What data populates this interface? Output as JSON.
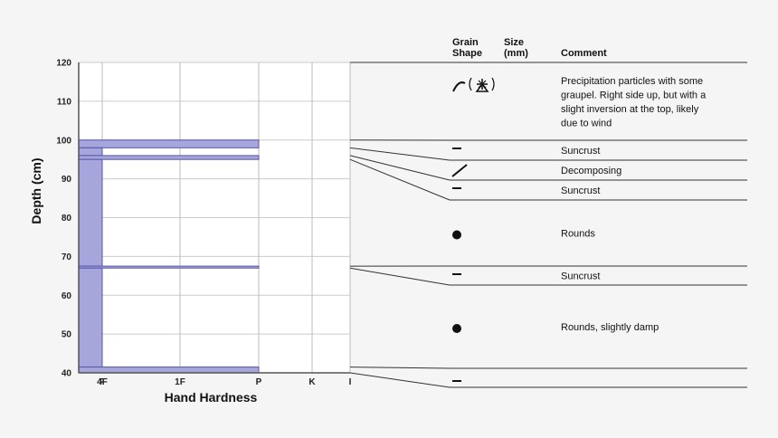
{
  "chart_data": {
    "type": "bar",
    "ylabel": "Depth (cm)",
    "xlabel": "Hand Hardness",
    "ylim": [
      40,
      120
    ],
    "y_ticks": [
      40,
      50,
      60,
      70,
      80,
      90,
      100,
      110,
      120
    ],
    "hardness_scale": [
      "F",
      "4F",
      "1F",
      "P",
      "K",
      "I"
    ],
    "bar_color": "#a6a6dd",
    "bar_edge_color": "#5555aa",
    "layers": [
      {
        "bottom": 100,
        "top": 120,
        "hardness": "F",
        "grain": "precip-graupel",
        "comment_lines": [
          "Precipitation particles with some",
          "graupel. Right side up, but with a",
          "slight inversion at the top, likely",
          "due to wind"
        ]
      },
      {
        "bottom": 98,
        "top": 100,
        "hardness": "P",
        "grain": "melt-freeze-crust",
        "comment_lines": [
          "Suncrust"
        ]
      },
      {
        "bottom": 96,
        "top": 98,
        "hardness": "4F",
        "grain": "decomposing",
        "comment_lines": [
          "Decomposing"
        ]
      },
      {
        "bottom": 95,
        "top": 96,
        "hardness": "P",
        "grain": "melt-freeze-crust",
        "comment_lines": [
          "Suncrust"
        ]
      },
      {
        "bottom": 67.5,
        "top": 95,
        "hardness": "4F",
        "grain": "rounds",
        "comment_lines": [
          "Rounds"
        ]
      },
      {
        "bottom": 67,
        "top": 67.5,
        "hardness": "P",
        "grain": "melt-freeze-crust",
        "comment_lines": [
          "Suncrust"
        ]
      },
      {
        "bottom": 41.5,
        "top": 67,
        "hardness": "4F",
        "grain": "rounds",
        "comment_lines": [
          "Rounds, slightly damp"
        ]
      },
      {
        "bottom": 40,
        "top": 41.5,
        "hardness": "P",
        "grain": "melt-freeze-crust",
        "comment_lines": []
      }
    ]
  },
  "table_header": {
    "grain_line1": "Grain",
    "grain_line2": "Shape",
    "size_line1": "Size",
    "size_line2": "(mm)",
    "comment": "Comment"
  }
}
